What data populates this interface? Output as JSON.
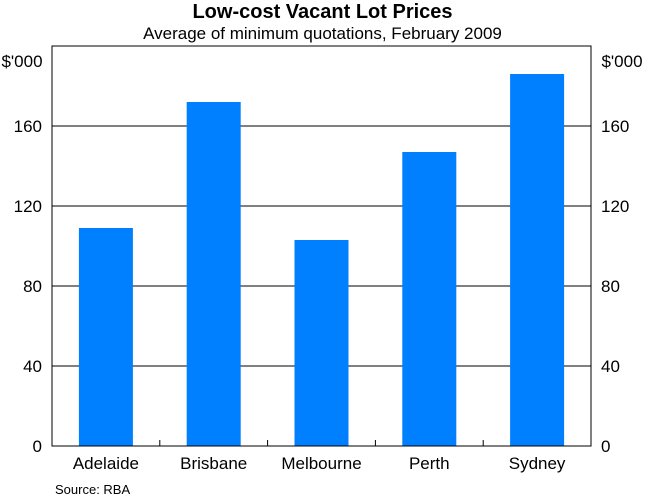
{
  "chart_data": {
    "type": "bar",
    "title": "Low-cost Vacant Lot Prices",
    "subtitle": "Average of minimum quotations, February 2009",
    "unit_left": "$'000",
    "unit_right": "$'000",
    "categories": [
      "Adelaide",
      "Brisbane",
      "Melbourne",
      "Perth",
      "Sydney"
    ],
    "values": [
      109,
      172,
      103,
      147,
      186
    ],
    "ylim": [
      0,
      200
    ],
    "yticks": [
      0,
      40,
      80,
      120,
      160
    ],
    "grid": true,
    "bar_color": "#0080ff",
    "source": "Source: RBA"
  }
}
